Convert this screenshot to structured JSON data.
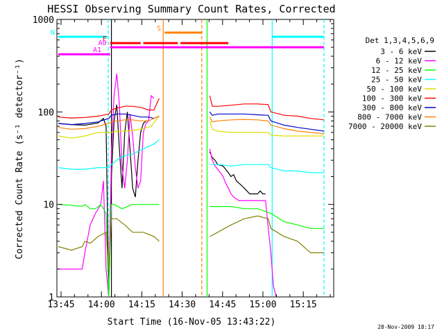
{
  "chart_data": {
    "type": "line",
    "title": "HESSI Observing Summary Count Rates, Corrected",
    "xlabel": "Start Time (16-Nov-05 13:43:22)",
    "ylabel": "Corrected Count Rate (s⁻¹ detector⁻¹)",
    "y_scale": "log",
    "ylim": [
      1,
      1000
    ],
    "xlim_minutes": [
      0,
      100
    ],
    "x_tick_labels": [
      "13:45",
      "14:00",
      "14:15",
      "14:30",
      "14:45",
      "15:00",
      "15:15"
    ],
    "y_tick_labels": [
      "1",
      "10",
      "100",
      "1000"
    ],
    "legend_title": "Det 1,3,4,5,6,9",
    "legend_placement": "right",
    "timestamp": "28-Nov-2009 18:17",
    "series": [
      {
        "name": "3 - 6 keV",
        "color": "#000000",
        "points": [
          [
            0,
            75
          ],
          [
            5,
            73
          ],
          [
            10,
            72
          ],
          [
            15,
            76
          ],
          [
            17,
            85
          ],
          [
            18,
            70
          ],
          [
            19,
            1
          ],
          [
            20,
            20
          ],
          [
            21,
            80
          ],
          [
            22,
            120
          ],
          [
            23,
            40
          ],
          [
            24,
            15
          ],
          [
            25,
            60
          ],
          [
            26,
            100
          ],
          [
            27,
            40
          ],
          [
            28,
            15
          ],
          [
            29,
            12
          ],
          [
            30,
            30
          ],
          [
            31,
            60
          ],
          [
            32,
            75
          ],
          [
            33,
            80
          ],
          [
            34,
            80
          ],
          [
            null,
            null
          ],
          [
            57,
            37
          ],
          [
            58,
            32
          ],
          [
            59,
            30
          ],
          [
            60,
            27
          ],
          [
            62,
            26
          ],
          [
            64,
            22
          ],
          [
            65,
            20
          ],
          [
            66,
            21
          ],
          [
            67,
            18
          ],
          [
            68,
            17
          ],
          [
            69,
            16
          ],
          [
            70,
            15
          ],
          [
            71,
            14
          ],
          [
            72,
            13
          ],
          [
            73,
            13
          ],
          [
            74,
            13
          ],
          [
            75,
            13
          ],
          [
            76,
            14
          ],
          [
            77,
            13
          ],
          [
            78,
            13
          ]
        ]
      },
      {
        "name": "6 - 12 keV",
        "color": "#ff00ff",
        "points": [
          [
            0,
            2
          ],
          [
            5,
            2
          ],
          [
            9,
            2
          ],
          [
            10,
            3
          ],
          [
            12,
            6
          ],
          [
            14,
            8
          ],
          [
            16,
            10
          ],
          [
            17,
            18
          ],
          [
            18,
            2
          ],
          [
            19,
            1
          ],
          [
            20,
            35
          ],
          [
            21,
            150
          ],
          [
            22,
            260
          ],
          [
            23,
            120
          ],
          [
            24,
            25
          ],
          [
            25,
            15
          ],
          [
            26,
            30
          ],
          [
            27,
            95
          ],
          [
            28,
            55
          ],
          [
            29,
            25
          ],
          [
            30,
            15
          ],
          [
            31,
            18
          ],
          [
            32,
            60
          ],
          [
            33,
            75
          ],
          [
            34,
            80
          ],
          [
            35,
            150
          ],
          [
            36,
            140
          ],
          [
            null,
            null
          ],
          [
            57,
            40
          ],
          [
            58,
            30
          ],
          [
            59,
            26
          ],
          [
            60,
            24
          ],
          [
            61,
            22
          ],
          [
            62,
            20
          ],
          [
            63,
            17
          ],
          [
            64,
            15
          ],
          [
            65,
            13
          ],
          [
            66,
            12
          ],
          [
            68,
            11
          ],
          [
            70,
            11
          ],
          [
            72,
            11
          ],
          [
            74,
            11
          ],
          [
            76,
            11
          ],
          [
            78,
            11
          ],
          [
            80,
            3
          ],
          [
            81,
            1.3
          ],
          [
            82,
            1
          ]
        ]
      },
      {
        "name": "12 - 25 keV",
        "color": "#00ff00",
        "points": [
          [
            0,
            10
          ],
          [
            5,
            9.8
          ],
          [
            9,
            9.5
          ],
          [
            10,
            10
          ],
          [
            12,
            9
          ],
          [
            14,
            9
          ],
          [
            16,
            10
          ],
          [
            17,
            9
          ],
          [
            18,
            8
          ],
          [
            19,
            1
          ],
          [
            20,
            10
          ],
          [
            21,
            10
          ],
          [
            24,
            9
          ],
          [
            28,
            10
          ],
          [
            32,
            10
          ],
          [
            36,
            10
          ],
          [
            38,
            10
          ],
          [
            null,
            null
          ],
          [
            57,
            9.5
          ],
          [
            60,
            9.5
          ],
          [
            65,
            9.5
          ],
          [
            70,
            9
          ],
          [
            75,
            9
          ],
          [
            80,
            8
          ],
          [
            85,
            6.5
          ],
          [
            90,
            6
          ],
          [
            95,
            5.5
          ],
          [
            100,
            5.5
          ]
        ]
      },
      {
        "name": "25 - 50 keV",
        "color": "#00ffff",
        "points": [
          [
            0,
            25
          ],
          [
            5,
            24
          ],
          [
            10,
            24
          ],
          [
            15,
            25
          ],
          [
            18,
            25
          ],
          [
            19,
            25
          ],
          [
            20,
            27
          ],
          [
            22,
            30
          ],
          [
            24,
            33
          ],
          [
            28,
            35
          ],
          [
            32,
            40
          ],
          [
            36,
            45
          ],
          [
            38,
            50
          ],
          [
            null,
            null
          ],
          [
            57,
            27
          ],
          [
            60,
            27
          ],
          [
            65,
            26
          ],
          [
            70,
            27
          ],
          [
            75,
            27
          ],
          [
            79,
            27
          ],
          [
            80,
            25
          ],
          [
            85,
            23
          ],
          [
            90,
            23
          ],
          [
            95,
            22
          ],
          [
            100,
            22
          ]
        ]
      },
      {
        "name": "50 - 100 keV",
        "color": "#dddd00",
        "points": [
          [
            0,
            55
          ],
          [
            5,
            52
          ],
          [
            10,
            55
          ],
          [
            15,
            60
          ],
          [
            19,
            60
          ],
          [
            20,
            60
          ],
          [
            22,
            62
          ],
          [
            25,
            62
          ],
          [
            28,
            63
          ],
          [
            32,
            66
          ],
          [
            35,
            70
          ],
          [
            38,
            90
          ],
          [
            null,
            null
          ],
          [
            57,
            80
          ],
          [
            58,
            65
          ],
          [
            60,
            62
          ],
          [
            65,
            60
          ],
          [
            70,
            60
          ],
          [
            75,
            60
          ],
          [
            79,
            60
          ],
          [
            80,
            56
          ],
          [
            85,
            55
          ],
          [
            90,
            55
          ],
          [
            95,
            55
          ],
          [
            100,
            55
          ]
        ]
      },
      {
        "name": "100 - 300 keV",
        "color": "#ff0000",
        "points": [
          [
            0,
            88
          ],
          [
            5,
            86
          ],
          [
            10,
            87
          ],
          [
            15,
            90
          ],
          [
            19,
            95
          ],
          [
            20,
            105
          ],
          [
            22,
            110
          ],
          [
            25,
            115
          ],
          [
            28,
            115
          ],
          [
            31,
            112
          ],
          [
            34,
            105
          ],
          [
            36,
            105
          ],
          [
            38,
            140
          ],
          [
            null,
            null
          ],
          [
            57,
            150
          ],
          [
            58,
            115
          ],
          [
            60,
            115
          ],
          [
            65,
            118
          ],
          [
            70,
            122
          ],
          [
            75,
            122
          ],
          [
            79,
            120
          ],
          [
            80,
            100
          ],
          [
            85,
            92
          ],
          [
            90,
            90
          ],
          [
            95,
            85
          ],
          [
            100,
            82
          ]
        ]
      },
      {
        "name": "300 - 800 keV",
        "color": "#0000cc",
        "points": [
          [
            0,
            75
          ],
          [
            5,
            73
          ],
          [
            10,
            75
          ],
          [
            15,
            78
          ],
          [
            19,
            85
          ],
          [
            20,
            92
          ],
          [
            22,
            95
          ],
          [
            25,
            95
          ],
          [
            28,
            92
          ],
          [
            31,
            88
          ],
          [
            34,
            88
          ],
          [
            36,
            85
          ],
          [
            38,
            90
          ],
          [
            null,
            null
          ],
          [
            57,
            100
          ],
          [
            58,
            92
          ],
          [
            60,
            95
          ],
          [
            65,
            95
          ],
          [
            70,
            95
          ],
          [
            75,
            93
          ],
          [
            79,
            92
          ],
          [
            80,
            80
          ],
          [
            85,
            72
          ],
          [
            90,
            68
          ],
          [
            95,
            65
          ],
          [
            100,
            62
          ]
        ]
      },
      {
        "name": "800 - 7000 keV",
        "color": "#ff8000",
        "points": [
          [
            0,
            68
          ],
          [
            5,
            65
          ],
          [
            10,
            66
          ],
          [
            15,
            70
          ],
          [
            19,
            75
          ],
          [
            20,
            78
          ],
          [
            22,
            80
          ],
          [
            25,
            82
          ],
          [
            28,
            82
          ],
          [
            31,
            80
          ],
          [
            34,
            80
          ],
          [
            36,
            85
          ],
          [
            38,
            90
          ],
          [
            null,
            null
          ],
          [
            57,
            88
          ],
          [
            58,
            78
          ],
          [
            60,
            80
          ],
          [
            65,
            82
          ],
          [
            70,
            83
          ],
          [
            75,
            82
          ],
          [
            79,
            80
          ],
          [
            80,
            72
          ],
          [
            85,
            66
          ],
          [
            90,
            62
          ],
          [
            95,
            60
          ],
          [
            100,
            58
          ]
        ]
      },
      {
        "name": "7000 - 20000 keV",
        "color": "#808000",
        "points": [
          [
            0,
            3.5
          ],
          [
            5,
            3.2
          ],
          [
            9,
            3.5
          ],
          [
            10,
            4
          ],
          [
            12,
            3.8
          ],
          [
            15,
            4.5
          ],
          [
            18,
            5
          ],
          [
            19,
            2
          ],
          [
            20,
            7
          ],
          [
            22,
            7
          ],
          [
            25,
            6
          ],
          [
            28,
            5
          ],
          [
            32,
            5
          ],
          [
            36,
            4.5
          ],
          [
            38,
            4
          ],
          [
            null,
            null
          ],
          [
            57,
            4.5
          ],
          [
            60,
            5
          ],
          [
            65,
            6
          ],
          [
            70,
            7
          ],
          [
            75,
            7.5
          ],
          [
            79,
            7
          ],
          [
            80,
            5.5
          ],
          [
            85,
            4.5
          ],
          [
            90,
            4
          ],
          [
            95,
            3
          ],
          [
            100,
            3
          ]
        ]
      }
    ],
    "annotations": {
      "flags": [
        {
          "label": "N",
          "color": "#00ffff",
          "y": 650,
          "ranges": [
            [
              0,
              18.5
            ],
            [
              80.5,
              100
            ]
          ]
        },
        {
          "label": "S",
          "color": "#ff8000",
          "y": 720,
          "ranges": [
            [
              40,
              54
            ]
          ]
        },
        {
          "label": "F",
          "color": "#ff0000",
          "y": 555,
          "ranges": [
            [
              19.5,
              31
            ],
            [
              32,
              45
            ],
            [
              46,
              64
            ]
          ]
        },
        {
          "label": "A0",
          "color": "#ff00ff",
          "y": 500,
          "ranges": [
            [
              19.5,
              100
            ]
          ]
        },
        {
          "label": "A1",
          "color": "#ff00ff",
          "y": 420,
          "ranges": [
            [
              0,
              19.5
            ]
          ]
        }
      ],
      "vertical_lines": [
        {
          "x": 18.8,
          "color": "#00ffff",
          "style": "dashed"
        },
        {
          "x": 20,
          "color": "#000000",
          "style": "solid"
        },
        {
          "x": 39.5,
          "color": "#ff8000",
          "style": "solid"
        },
        {
          "x": 54,
          "color": "#ff8000",
          "style": "dashed"
        },
        {
          "x": 56,
          "color": "#00ff00",
          "style": "solid"
        },
        {
          "x": 80.5,
          "color": "#00ffff",
          "style": "solid"
        },
        {
          "x": 100,
          "color": "#00ffff",
          "style": "dashed"
        }
      ]
    }
  }
}
